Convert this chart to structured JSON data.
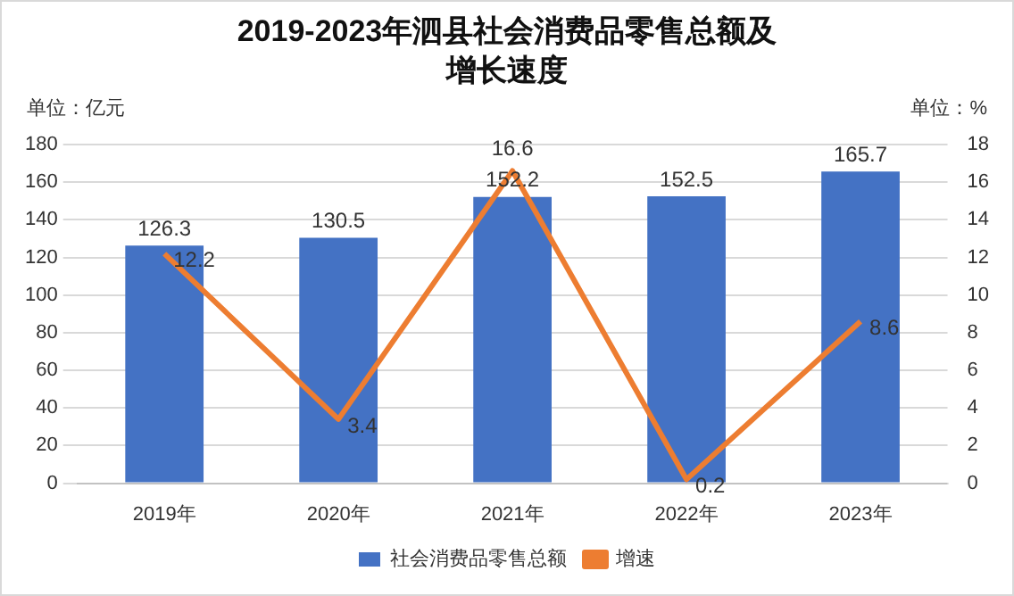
{
  "chart_data": {
    "type": "bar",
    "title": "2019-2023年泗县社会消费品零售总额及增长速度",
    "ylabel": "单位：亿元",
    "y2label": "单位：%",
    "categories": [
      "2019年",
      "2020年",
      "2021年",
      "2022年",
      "2023年"
    ],
    "series": [
      {
        "name": "社会消费品零售总额",
        "color": "#4472c4",
        "values": [
          126.3,
          130.5,
          152.2,
          152.5,
          165.7
        ]
      },
      {
        "name": "增速",
        "type": "line",
        "axis": "y2",
        "color": "#ed7d31",
        "values": [
          12.2,
          3.4,
          16.6,
          0.2,
          8.6
        ]
      }
    ],
    "ylim": [
      0,
      180
    ],
    "yticks": [
      0,
      20,
      40,
      60,
      80,
      100,
      120,
      140,
      160,
      180
    ],
    "y2lim": [
      0,
      18
    ],
    "y2ticks": [
      0,
      2,
      4,
      6,
      8,
      10,
      12,
      14,
      16,
      18
    ],
    "grid": "y",
    "legend": "bottom",
    "data_labels": true,
    "marker": "none",
    "line_style": "solid"
  }
}
